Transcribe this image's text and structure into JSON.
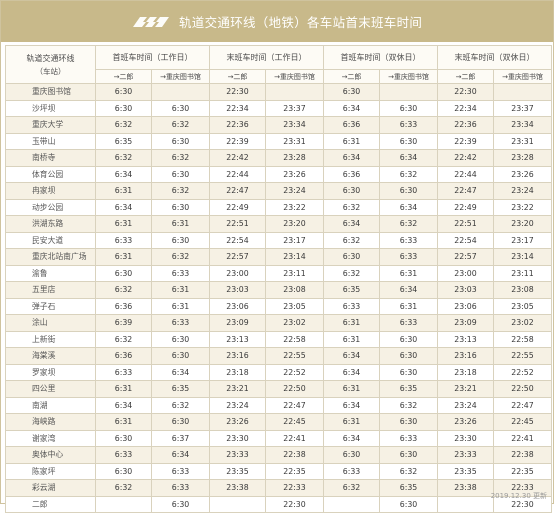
{
  "header": {
    "title": "轨道交通环线（地铁）各车站首末班车时间",
    "logo_icon": "metro-logo-icon",
    "bg_color": "#c8b98a",
    "accent_color": "#b9a56e"
  },
  "table": {
    "station_header": "轨道交通环线",
    "station_header_sub": "（车站）",
    "groups": [
      "首班车时间（工作日）",
      "末班车时间（工作日）",
      "首班车时间（双休日）",
      "末班车时间（双休日）"
    ],
    "directions": [
      "→二郎",
      "→重庆图书馆",
      "→二郎",
      "→重庆图书馆",
      "→二郎",
      "→重庆图书馆",
      "→二郎",
      "→重庆图书馆"
    ],
    "rows": [
      [
        "重庆图书馆",
        "6:30",
        "",
        "22:30",
        "",
        "6:30",
        "",
        "22:30",
        ""
      ],
      [
        "沙坪坝",
        "6:30",
        "6:30",
        "22:34",
        "23:37",
        "6:34",
        "6:30",
        "22:34",
        "23:37"
      ],
      [
        "重庆大学",
        "6:32",
        "6:32",
        "22:36",
        "23:34",
        "6:36",
        "6:33",
        "22:36",
        "23:34"
      ],
      [
        "玉带山",
        "6:35",
        "6:30",
        "22:39",
        "23:31",
        "6:31",
        "6:30",
        "22:39",
        "23:31"
      ],
      [
        "南桥寺",
        "6:32",
        "6:32",
        "22:42",
        "23:28",
        "6:34",
        "6:34",
        "22:42",
        "23:28"
      ],
      [
        "体育公园",
        "6:34",
        "6:30",
        "22:44",
        "23:26",
        "6:36",
        "6:32",
        "22:44",
        "23:26"
      ],
      [
        "冉家坝",
        "6:31",
        "6:32",
        "22:47",
        "23:24",
        "6:30",
        "6:30",
        "22:47",
        "23:24"
      ],
      [
        "动步公园",
        "6:34",
        "6:30",
        "22:49",
        "23:22",
        "6:32",
        "6:34",
        "22:49",
        "23:22"
      ],
      [
        "洪湖东路",
        "6:31",
        "6:31",
        "22:51",
        "23:20",
        "6:34",
        "6:32",
        "22:51",
        "23:20"
      ],
      [
        "民安大道",
        "6:33",
        "6:30",
        "22:54",
        "23:17",
        "6:32",
        "6:33",
        "22:54",
        "23:17"
      ],
      [
        "重庆北站南广场",
        "6:31",
        "6:32",
        "22:57",
        "23:14",
        "6:30",
        "6:33",
        "22:57",
        "23:14"
      ],
      [
        "渝鲁",
        "6:30",
        "6:33",
        "23:00",
        "23:11",
        "6:32",
        "6:31",
        "23:00",
        "23:11"
      ],
      [
        "五里店",
        "6:32",
        "6:31",
        "23:03",
        "23:08",
        "6:35",
        "6:34",
        "23:03",
        "23:08"
      ],
      [
        "弹子石",
        "6:36",
        "6:31",
        "23:06",
        "23:05",
        "6:33",
        "6:31",
        "23:06",
        "23:05"
      ],
      [
        "涂山",
        "6:39",
        "6:33",
        "23:09",
        "23:02",
        "6:31",
        "6:33",
        "23:09",
        "23:02"
      ],
      [
        "上新街",
        "6:32",
        "6:30",
        "23:13",
        "22:58",
        "6:31",
        "6:30",
        "23:13",
        "22:58"
      ],
      [
        "海棠溪",
        "6:36",
        "6:30",
        "23:16",
        "22:55",
        "6:34",
        "6:30",
        "23:16",
        "22:55"
      ],
      [
        "罗家坝",
        "6:33",
        "6:34",
        "23:18",
        "22:52",
        "6:34",
        "6:30",
        "23:18",
        "22:52"
      ],
      [
        "四公里",
        "6:31",
        "6:35",
        "23:21",
        "22:50",
        "6:31",
        "6:35",
        "23:21",
        "22:50"
      ],
      [
        "南湖",
        "6:34",
        "6:32",
        "23:24",
        "22:47",
        "6:34",
        "6:32",
        "23:24",
        "22:47"
      ],
      [
        "海峡路",
        "6:31",
        "6:30",
        "23:26",
        "22:45",
        "6:31",
        "6:30",
        "23:26",
        "22:45"
      ],
      [
        "谢家湾",
        "6:30",
        "6:37",
        "23:30",
        "22:41",
        "6:34",
        "6:33",
        "23:30",
        "22:41"
      ],
      [
        "奥体中心",
        "6:33",
        "6:34",
        "23:33",
        "22:38",
        "6:30",
        "6:30",
        "23:33",
        "22:38"
      ],
      [
        "陈家坪",
        "6:30",
        "6:33",
        "23:35",
        "22:35",
        "6:33",
        "6:32",
        "23:35",
        "22:35"
      ],
      [
        "彩云湖",
        "6:32",
        "6:33",
        "23:38",
        "22:33",
        "6:32",
        "6:35",
        "23:38",
        "22:33"
      ],
      [
        "二郎",
        "",
        "6:30",
        "",
        "22:30",
        "",
        "6:30",
        "",
        "22:30"
      ]
    ]
  },
  "footer": {
    "note": "2019.12.30 更新"
  }
}
